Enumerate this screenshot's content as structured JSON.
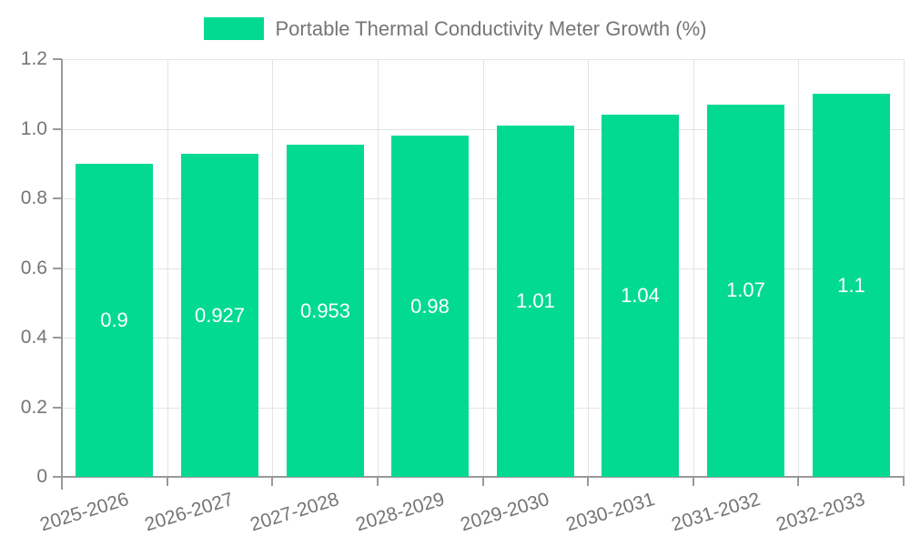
{
  "chart_data": {
    "type": "bar",
    "title": "Portable Thermal Conductivity Meter Growth (%)",
    "legend": {
      "label": "Portable Thermal Conductivity Meter Growth (%)",
      "position": "top-center"
    },
    "categories": [
      "2025-2026",
      "2026-2027",
      "2027-2028",
      "2028-2029",
      "2029-2030",
      "2030-2031",
      "2031-2032",
      "2032-2033"
    ],
    "series": [
      {
        "name": "Portable Thermal Conductivity Meter Growth (%)",
        "values": [
          0.9,
          0.927,
          0.953,
          0.98,
          1.01,
          1.04,
          1.07,
          1.1
        ],
        "data_labels": [
          "0.9",
          "0.927",
          "0.953",
          "0.98",
          "1.01",
          "1.04",
          "1.07",
          "1.1"
        ]
      }
    ],
    "xlabel": "",
    "ylabel": "",
    "ylim": [
      0,
      1.2
    ],
    "y_ticks": [
      {
        "value": 0,
        "label": "0"
      },
      {
        "value": 0.2,
        "label": "0.2"
      },
      {
        "value": 0.4,
        "label": "0.4"
      },
      {
        "value": 0.6,
        "label": "0.6"
      },
      {
        "value": 0.8,
        "label": "0.8"
      },
      {
        "value": 1.0,
        "label": "1.0"
      },
      {
        "value": 1.2,
        "label": "1.2"
      }
    ],
    "grid": true,
    "x_label_rotation_deg": -17,
    "data_label_position": "inside-center",
    "colors": {
      "bar": "#03DA91",
      "bar_label": "#ffffff",
      "axis": "#999999",
      "grid": "#e4e4e4",
      "text": "#757575",
      "background": "#ffffff"
    }
  }
}
